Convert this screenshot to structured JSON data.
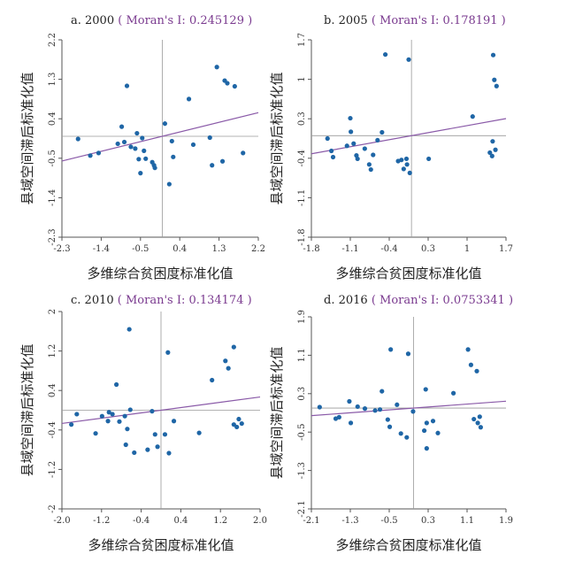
{
  "colors": {
    "point": "#1f66a6",
    "fit_line": "#8a5aa8",
    "axis": "#555555",
    "moran_text": "#7a3a8f"
  },
  "chart_data": [
    {
      "type": "scatter",
      "panel": "a. 2000",
      "moran_label": "Moran's I: 0.245129",
      "xlabel": "多维综合贫困度标准化值",
      "ylabel": "县域空间滞后标准化值",
      "xlim": [
        -2.3,
        2.2
      ],
      "ylim": [
        -2.3,
        2.2
      ],
      "xticks": [
        -2.3,
        -1.4,
        -0.5,
        0.4,
        1.3,
        2.2
      ],
      "yticks": [
        -2.3,
        -1.4,
        -0.5,
        0.4,
        1.3,
        2.2
      ],
      "xtick_labels": [
        "-2.3",
        "-1.4",
        "-0.5",
        "0.4",
        "1.3",
        "2.2"
      ],
      "ytick_labels": [
        "-2.3",
        "-1.4",
        "-0.5",
        "0.4",
        "1.3",
        "2.2"
      ],
      "fit_line": {
        "slope": 0.245129,
        "intercept": 0.0
      },
      "points": [
        {
          "x": -1.93,
          "y": -0.06
        },
        {
          "x": -1.65,
          "y": -0.44
        },
        {
          "x": -1.46,
          "y": -0.38
        },
        {
          "x": -1.02,
          "y": -0.17
        },
        {
          "x": -0.87,
          "y": -0.13
        },
        {
          "x": -0.93,
          "y": 0.22
        },
        {
          "x": -0.72,
          "y": -0.24
        },
        {
          "x": -0.62,
          "y": -0.28
        },
        {
          "x": -0.58,
          "y": 0.07
        },
        {
          "x": -0.54,
          "y": -0.52
        },
        {
          "x": -0.5,
          "y": -0.84
        },
        {
          "x": -0.46,
          "y": -0.04
        },
        {
          "x": -0.42,
          "y": -0.33
        },
        {
          "x": -0.38,
          "y": -0.51
        },
        {
          "x": -0.23,
          "y": -0.59
        },
        {
          "x": -0.19,
          "y": -0.66
        },
        {
          "x": -0.17,
          "y": -0.72
        },
        {
          "x": -0.81,
          "y": 1.15
        },
        {
          "x": 0.06,
          "y": 0.29
        },
        {
          "x": 0.16,
          "y": -1.09
        },
        {
          "x": 0.25,
          "y": -0.47
        },
        {
          "x": 0.22,
          "y": -0.11
        },
        {
          "x": 0.61,
          "y": 0.85
        },
        {
          "x": 0.71,
          "y": -0.19
        },
        {
          "x": 1.09,
          "y": -0.03
        },
        {
          "x": 1.14,
          "y": -0.66
        },
        {
          "x": 1.25,
          "y": 1.58
        },
        {
          "x": 1.43,
          "y": 1.27
        },
        {
          "x": 1.49,
          "y": 1.21
        },
        {
          "x": 1.66,
          "y": 1.14
        },
        {
          "x": 1.38,
          "y": -0.57
        },
        {
          "x": 1.85,
          "y": -0.38
        }
      ]
    },
    {
      "type": "scatter",
      "panel": "b. 2005",
      "moran_label": "Moran's I: 0.178191",
      "xlabel": "多维综合贫困度标准化值",
      "ylabel": "县域空间滞后标准化值",
      "xlim": [
        -1.8,
        1.7
      ],
      "ylim": [
        -1.8,
        1.7
      ],
      "xticks": [
        -1.8,
        -1.1,
        -0.4,
        0.3,
        1.0,
        1.7
      ],
      "yticks": [
        -1.8,
        -1.1,
        -0.4,
        0.3,
        1.0,
        1.7
      ],
      "xtick_labels": [
        "-1.8",
        "-1.1",
        "-0.4",
        "0.3",
        "1",
        "1.7"
      ],
      "ytick_labels": [
        "-1.8",
        "-1.1",
        "-0.4",
        "0.3",
        "1",
        "1.7"
      ],
      "fit_line": {
        "slope": 0.178191,
        "intercept": 0.0
      },
      "points": [
        {
          "x": -1.51,
          "y": -0.05
        },
        {
          "x": -1.44,
          "y": -0.27
        },
        {
          "x": -1.41,
          "y": -0.38
        },
        {
          "x": -1.16,
          "y": -0.18
        },
        {
          "x": -1.1,
          "y": 0.31
        },
        {
          "x": -1.09,
          "y": 0.07
        },
        {
          "x": -1.04,
          "y": -0.14
        },
        {
          "x": -0.99,
          "y": -0.35
        },
        {
          "x": -0.97,
          "y": -0.41
        },
        {
          "x": -0.84,
          "y": -0.23
        },
        {
          "x": -0.76,
          "y": -0.51
        },
        {
          "x": -0.73,
          "y": -0.6
        },
        {
          "x": -0.69,
          "y": -0.34
        },
        {
          "x": -0.61,
          "y": -0.08
        },
        {
          "x": -0.53,
          "y": 0.06
        },
        {
          "x": -0.47,
          "y": 1.44
        },
        {
          "x": -0.24,
          "y": -0.45
        },
        {
          "x": -0.18,
          "y": -0.43
        },
        {
          "x": -0.14,
          "y": -0.59
        },
        {
          "x": -0.09,
          "y": -0.41
        },
        {
          "x": -0.05,
          "y": 1.35
        },
        {
          "x": -0.03,
          "y": -0.66
        },
        {
          "x": -0.08,
          "y": -0.51
        },
        {
          "x": 0.31,
          "y": -0.41
        },
        {
          "x": 1.1,
          "y": 0.34
        },
        {
          "x": 1.41,
          "y": -0.3
        },
        {
          "x": 1.46,
          "y": -0.1
        },
        {
          "x": 1.47,
          "y": 1.43
        },
        {
          "x": 1.49,
          "y": 0.99
        },
        {
          "x": 1.53,
          "y": 0.88
        },
        {
          "x": 1.51,
          "y": -0.25
        },
        {
          "x": 1.45,
          "y": -0.36
        }
      ]
    },
    {
      "type": "scatter",
      "panel": "c. 2010",
      "moran_label": "Moran's I: 0.134174",
      "xlabel": "多维综合贫困度标准化值",
      "ylabel": "县域空间滞后标准化值",
      "xlim": [
        -2.0,
        2.0
      ],
      "ylim": [
        -2.0,
        2.0
      ],
      "xticks": [
        -2.0,
        -1.2,
        -0.4,
        0.4,
        1.2,
        2.0
      ],
      "yticks": [
        -2.0,
        -1.2,
        -0.4,
        0.4,
        1.2,
        2.0
      ],
      "xtick_labels": [
        "-2.0",
        "-1.2",
        "-0.4",
        "0.4",
        "1.2",
        "2.0"
      ],
      "ytick_labels": [
        "-2",
        "-1.2",
        "-0.4",
        "0.4",
        "1.2",
        "2"
      ],
      "fit_line": {
        "slope": 0.134174,
        "intercept": 0.0
      },
      "points": [
        {
          "x": -1.81,
          "y": -0.29
        },
        {
          "x": -1.7,
          "y": -0.08
        },
        {
          "x": -1.32,
          "y": -0.47
        },
        {
          "x": -1.19,
          "y": -0.12
        },
        {
          "x": -1.07,
          "y": -0.22
        },
        {
          "x": -1.05,
          "y": -0.04
        },
        {
          "x": -0.98,
          "y": -0.08
        },
        {
          "x": -0.9,
          "y": 0.52
        },
        {
          "x": -0.84,
          "y": -0.23
        },
        {
          "x": -0.73,
          "y": -0.12
        },
        {
          "x": -0.71,
          "y": -0.7
        },
        {
          "x": -0.68,
          "y": -0.38
        },
        {
          "x": -0.62,
          "y": 0.01
        },
        {
          "x": -0.64,
          "y": 1.64
        },
        {
          "x": -0.54,
          "y": -0.86
        },
        {
          "x": -0.27,
          "y": -0.8
        },
        {
          "x": -0.18,
          "y": -0.02
        },
        {
          "x": -0.12,
          "y": -0.49
        },
        {
          "x": -0.07,
          "y": -0.74
        },
        {
          "x": 0.08,
          "y": -0.49
        },
        {
          "x": 0.16,
          "y": -0.87
        },
        {
          "x": 0.26,
          "y": -0.22
        },
        {
          "x": 0.14,
          "y": 1.17
        },
        {
          "x": 0.77,
          "y": -0.46
        },
        {
          "x": 1.03,
          "y": 0.61
        },
        {
          "x": 1.3,
          "y": 1.0
        },
        {
          "x": 1.36,
          "y": 0.85
        },
        {
          "x": 1.47,
          "y": 1.28
        },
        {
          "x": 1.47,
          "y": -0.29
        },
        {
          "x": 1.53,
          "y": -0.34
        },
        {
          "x": 1.57,
          "y": -0.18
        },
        {
          "x": 1.63,
          "y": -0.27
        }
      ]
    },
    {
      "type": "scatter",
      "panel": "d. 2016",
      "moran_label": "Moran's I: 0.0753341",
      "xlabel": "多维综合贫困度标准化值",
      "ylabel": "县域空间滞后标准化值",
      "xlim": [
        -2.1,
        1.9
      ],
      "ylim": [
        -2.1,
        1.9
      ],
      "xticks": [
        -2.1,
        -1.3,
        -0.5,
        0.3,
        1.1,
        1.9
      ],
      "yticks": [
        -2.1,
        -1.3,
        -0.5,
        0.3,
        1.1,
        1.9
      ],
      "xtick_labels": [
        "-2.1",
        "-1.3",
        "-0.5",
        "0.3",
        "1.1",
        "1.9"
      ],
      "ytick_labels": [
        "-2.1",
        "-1.3",
        "-0.5",
        "0.3",
        "1.1",
        "1.9"
      ],
      "fit_line": {
        "slope": 0.0753341,
        "intercept": 0.0
      },
      "points": [
        {
          "x": -1.93,
          "y": 0.02
        },
        {
          "x": -1.6,
          "y": -0.22
        },
        {
          "x": -1.53,
          "y": -0.19
        },
        {
          "x": -1.32,
          "y": 0.14
        },
        {
          "x": -1.29,
          "y": -0.31
        },
        {
          "x": -1.15,
          "y": 0.03
        },
        {
          "x": -1.0,
          "y": -0.01
        },
        {
          "x": -0.79,
          "y": -0.05
        },
        {
          "x": -0.69,
          "y": -0.03
        },
        {
          "x": -0.65,
          "y": 0.35
        },
        {
          "x": -0.53,
          "y": -0.24
        },
        {
          "x": -0.49,
          "y": -0.39
        },
        {
          "x": -0.47,
          "y": 1.22
        },
        {
          "x": -0.34,
          "y": 0.07
        },
        {
          "x": -0.26,
          "y": -0.53
        },
        {
          "x": -0.14,
          "y": -0.61
        },
        {
          "x": -0.11,
          "y": 1.13
        },
        {
          "x": -0.01,
          "y": -0.07
        },
        {
          "x": 0.22,
          "y": -0.47
        },
        {
          "x": 0.25,
          "y": 0.39
        },
        {
          "x": 0.27,
          "y": -0.84
        },
        {
          "x": 0.27,
          "y": -0.31
        },
        {
          "x": 0.4,
          "y": -0.27
        },
        {
          "x": 0.5,
          "y": -0.52
        },
        {
          "x": 0.82,
          "y": 0.31
        },
        {
          "x": 1.12,
          "y": 1.22
        },
        {
          "x": 1.18,
          "y": 0.9
        },
        {
          "x": 1.24,
          "y": -0.23
        },
        {
          "x": 1.3,
          "y": 0.77
        },
        {
          "x": 1.36,
          "y": -0.18
        },
        {
          "x": 1.38,
          "y": -0.4
        },
        {
          "x": 1.32,
          "y": -0.31
        }
      ]
    }
  ]
}
